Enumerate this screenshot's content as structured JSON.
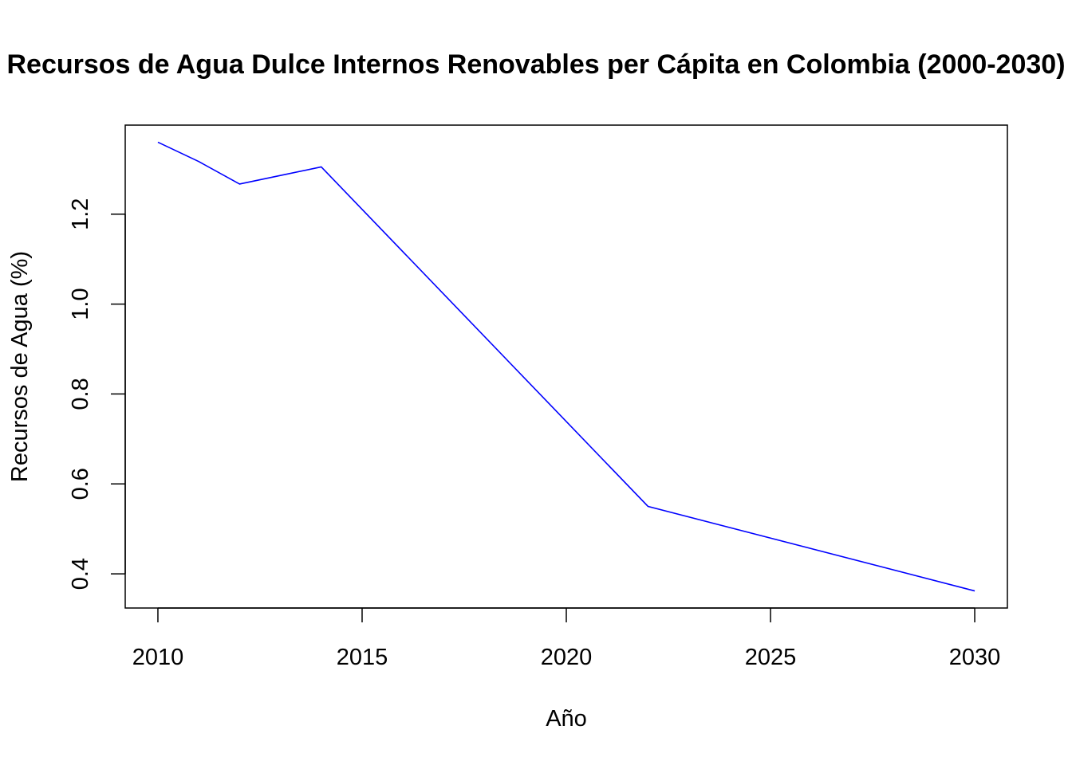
{
  "chart_data": {
    "type": "line",
    "title": "Recursos de Agua Dulce Internos Renovables per Cápita en Colombia (2000-2030)",
    "xlabel": "Año",
    "ylabel": "Recursos de Agua (%)",
    "xlim": [
      2009.2,
      2030.8
    ],
    "ylim": [
      0.324,
      1.398
    ],
    "x_ticks": [
      2010,
      2015,
      2020,
      2025,
      2030
    ],
    "y_ticks": [
      0.4,
      0.6,
      0.8,
      1.0,
      1.2
    ],
    "y_tick_labels": [
      "0.4",
      "0.6",
      "0.8",
      "1.0",
      "1.2"
    ],
    "grid": false,
    "legend": "none",
    "series": [
      {
        "color": "#0000ff",
        "x": [
          2010,
          2011,
          2012,
          2013,
          2014,
          2022,
          2030
        ],
        "y": [
          1.36,
          1.317,
          1.267,
          1.286,
          1.305,
          0.55,
          0.362
        ]
      }
    ]
  }
}
